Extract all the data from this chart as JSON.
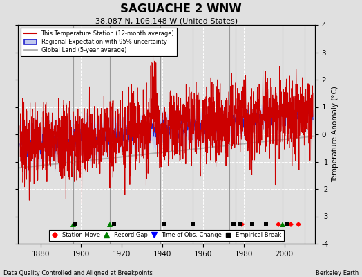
{
  "title": "SAGUACHE 2 WNW",
  "subtitle": "38.087 N, 106.148 W (United States)",
  "ylabel": "Temperature Anomaly (°C)",
  "xlabel_bottom_left": "Data Quality Controlled and Aligned at Breakpoints",
  "xlabel_bottom_right": "Berkeley Earth",
  "ylim": [
    -4,
    4
  ],
  "xlim": [
    1869,
    2015
  ],
  "xticks": [
    1880,
    1900,
    1920,
    1940,
    1960,
    1980,
    2000
  ],
  "yticks": [
    -4,
    -3,
    -2,
    -1,
    0,
    1,
    2,
    3,
    4
  ],
  "bg_color": "#e0e0e0",
  "plot_bg_color": "#e0e0e0",
  "grid_color": "#ffffff",
  "station_line_color": "#cc0000",
  "regional_line_color": "#2222cc",
  "regional_fill_color": "#c0c8ee",
  "global_line_color": "#b0b0b0",
  "vertical_line_color": "#999999",
  "vertical_lines": [
    1896,
    1914,
    1939,
    1955,
    1973,
    1976,
    1999,
    2010
  ],
  "station_moves": [
    1979,
    1997,
    2003,
    2007
  ],
  "record_gaps": [
    1896,
    1914,
    1999
  ],
  "obs_changes": [],
  "empirical_breaks": [
    1897,
    1916,
    1941,
    1955,
    1975,
    1978,
    1984,
    1991,
    2001
  ],
  "marker_y": -3.3,
  "seed": 12345
}
